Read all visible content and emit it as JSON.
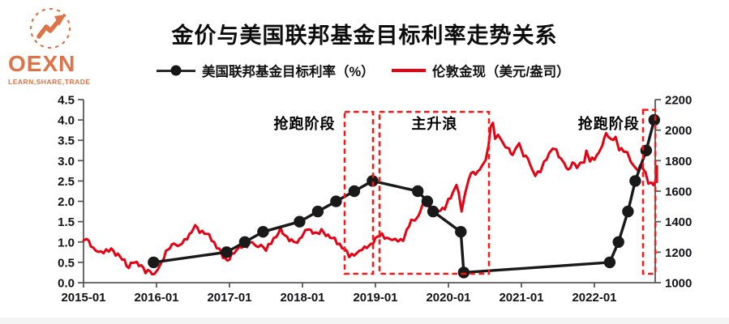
{
  "logo": {
    "name": "OEXN",
    "tagline": "LEARN,SHARE,TRADE",
    "color": "#df7246"
  },
  "title": "金价与美国联邦基金目标利率走势关系",
  "legend": [
    {
      "label": "美国联邦基金目标利率（%）",
      "marker": "black-line-dot",
      "color": "#151515"
    },
    {
      "label": "伦敦金现（美元/盎司）",
      "marker": "red-line",
      "color": "#e60012"
    }
  ],
  "chart_data": {
    "type": "line",
    "title": "金价与美国联邦基金目标利率走势关系",
    "x_tick_labels": [
      "2015-01",
      "2016-01",
      "2017-01",
      "2018-01",
      "2019-01",
      "2020-01",
      "2021-01",
      "2022-01"
    ],
    "x_tick_years": [
      2015,
      2016,
      2017,
      2018,
      2019,
      2020,
      2021,
      2022
    ],
    "grid": false,
    "legend_position": "top",
    "left_axis": {
      "min": 0,
      "max": 4.5,
      "ticks": [
        {
          "v": 4.5,
          "label": "4.5"
        },
        {
          "v": 4.0,
          "label": "4.0"
        },
        {
          "v": 3.5,
          "label": "3.5"
        },
        {
          "v": 3.0,
          "label": "3.0"
        },
        {
          "v": 2.5,
          "label": "2.5"
        },
        {
          "v": 2.0,
          "label": "2.0"
        },
        {
          "v": 1.5,
          "label": "1.5"
        },
        {
          "v": 1.0,
          "label": "1.0"
        },
        {
          "v": 0.5,
          "label": "0.5"
        },
        {
          "v": 0.0,
          "label": "0.0"
        }
      ]
    },
    "right_axis": {
      "min": 1000,
      "max": 2200,
      "ticks": [
        {
          "v": 2200,
          "label": "2200"
        },
        {
          "v": 2000,
          "label": "2000"
        },
        {
          "v": 1800,
          "label": "1800"
        },
        {
          "v": 1600,
          "label": "1600"
        },
        {
          "v": 1400,
          "label": "1400"
        },
        {
          "v": 1200,
          "label": "1200"
        },
        {
          "v": 1000,
          "label": "1000"
        }
      ]
    },
    "series": [
      {
        "name": "美国联邦基金目标利率（%）",
        "axis": "left",
        "color": "#191919",
        "style": "line-markers",
        "points": [
          [
            2015.96,
            0.5
          ],
          [
            2016.96,
            0.75
          ],
          [
            2017.21,
            1.0
          ],
          [
            2017.46,
            1.25
          ],
          [
            2017.96,
            1.5
          ],
          [
            2018.21,
            1.75
          ],
          [
            2018.46,
            2.0
          ],
          [
            2018.71,
            2.25
          ],
          [
            2018.96,
            2.5
          ],
          [
            2019.58,
            2.25
          ],
          [
            2019.71,
            2.0
          ],
          [
            2019.79,
            1.75
          ],
          [
            2020.17,
            1.25
          ],
          [
            2020.21,
            0.25
          ],
          [
            2022.21,
            0.5
          ],
          [
            2022.33,
            1.0
          ],
          [
            2022.46,
            1.75
          ],
          [
            2022.56,
            2.5
          ],
          [
            2022.71,
            3.25
          ],
          [
            2022.82,
            4.0
          ]
        ]
      },
      {
        "name": "伦敦金现（美元/盎司）",
        "axis": "right",
        "color": "#e60012",
        "style": "noisy-line",
        "points": [
          [
            2015.0,
            1270
          ],
          [
            2015.04,
            1292
          ],
          [
            2015.1,
            1250
          ],
          [
            2015.17,
            1205
          ],
          [
            2015.24,
            1185
          ],
          [
            2015.31,
            1210
          ],
          [
            2015.38,
            1220
          ],
          [
            2015.44,
            1185
          ],
          [
            2015.5,
            1170
          ],
          [
            2015.56,
            1150
          ],
          [
            2015.62,
            1095
          ],
          [
            2015.68,
            1130
          ],
          [
            2015.73,
            1135
          ],
          [
            2015.79,
            1110
          ],
          [
            2015.85,
            1070
          ],
          [
            2015.91,
            1075
          ],
          [
            2015.97,
            1050
          ],
          [
            2016.02,
            1095
          ],
          [
            2016.07,
            1130
          ],
          [
            2016.13,
            1200
          ],
          [
            2016.18,
            1245
          ],
          [
            2016.24,
            1255
          ],
          [
            2016.29,
            1230
          ],
          [
            2016.35,
            1265
          ],
          [
            2016.42,
            1295
          ],
          [
            2016.48,
            1320
          ],
          [
            2016.53,
            1365
          ],
          [
            2016.59,
            1345
          ],
          [
            2016.66,
            1330
          ],
          [
            2016.72,
            1305
          ],
          [
            2016.79,
            1260
          ],
          [
            2016.86,
            1215
          ],
          [
            2016.91,
            1170
          ],
          [
            2016.97,
            1135
          ],
          [
            2017.03,
            1190
          ],
          [
            2017.1,
            1215
          ],
          [
            2017.17,
            1240
          ],
          [
            2017.24,
            1255
          ],
          [
            2017.31,
            1268
          ],
          [
            2017.36,
            1228
          ],
          [
            2017.43,
            1258
          ],
          [
            2017.5,
            1222
          ],
          [
            2017.57,
            1262
          ],
          [
            2017.64,
            1312
          ],
          [
            2017.7,
            1348
          ],
          [
            2017.76,
            1305
          ],
          [
            2017.82,
            1282
          ],
          [
            2017.88,
            1272
          ],
          [
            2017.93,
            1252
          ],
          [
            2017.99,
            1298
          ],
          [
            2018.04,
            1342
          ],
          [
            2018.09,
            1358
          ],
          [
            2018.14,
            1325
          ],
          [
            2018.2,
            1318
          ],
          [
            2018.26,
            1345
          ],
          [
            2018.32,
            1318
          ],
          [
            2018.38,
            1298
          ],
          [
            2018.44,
            1278
          ],
          [
            2018.51,
            1248
          ],
          [
            2018.58,
            1210
          ],
          [
            2018.64,
            1178
          ],
          [
            2018.71,
            1196
          ],
          [
            2018.78,
            1208
          ],
          [
            2018.85,
            1222
          ],
          [
            2018.91,
            1242
          ],
          [
            2018.97,
            1275
          ],
          [
            2019.03,
            1292
          ],
          [
            2019.09,
            1312
          ],
          [
            2019.16,
            1298
          ],
          [
            2019.23,
            1282
          ],
          [
            2019.31,
            1278
          ],
          [
            2019.38,
            1292
          ],
          [
            2019.43,
            1332
          ],
          [
            2019.49,
            1405
          ],
          [
            2019.54,
            1418
          ],
          [
            2019.59,
            1438
          ],
          [
            2019.64,
            1505
          ],
          [
            2019.69,
            1540
          ],
          [
            2019.73,
            1498
          ],
          [
            2019.78,
            1478
          ],
          [
            2019.84,
            1462
          ],
          [
            2019.89,
            1472
          ],
          [
            2019.95,
            1492
          ],
          [
            2020.0,
            1552
          ],
          [
            2020.06,
            1582
          ],
          [
            2020.11,
            1648
          ],
          [
            2020.14,
            1592
          ],
          [
            2020.18,
            1478
          ],
          [
            2020.23,
            1585
          ],
          [
            2020.28,
            1682
          ],
          [
            2020.34,
            1718
          ],
          [
            2020.4,
            1732
          ],
          [
            2020.46,
            1768
          ],
          [
            2020.51,
            1802
          ],
          [
            2020.55,
            1902
          ],
          [
            2020.58,
            2022
          ],
          [
            2020.61,
            2062
          ],
          [
            2020.64,
            1938
          ],
          [
            2020.68,
            1968
          ],
          [
            2020.73,
            1918
          ],
          [
            2020.78,
            1898
          ],
          [
            2020.83,
            1878
          ],
          [
            2020.88,
            1842
          ],
          [
            2020.92,
            1878
          ],
          [
            2020.97,
            1898
          ],
          [
            2021.03,
            1848
          ],
          [
            2021.09,
            1818
          ],
          [
            2021.14,
            1738
          ],
          [
            2021.19,
            1702
          ],
          [
            2021.26,
            1738
          ],
          [
            2021.31,
            1782
          ],
          [
            2021.38,
            1832
          ],
          [
            2021.43,
            1898
          ],
          [
            2021.48,
            1868
          ],
          [
            2021.54,
            1812
          ],
          [
            2021.59,
            1782
          ],
          [
            2021.64,
            1732
          ],
          [
            2021.7,
            1792
          ],
          [
            2021.76,
            1762
          ],
          [
            2021.81,
            1772
          ],
          [
            2021.86,
            1792
          ],
          [
            2021.89,
            1858
          ],
          [
            2021.94,
            1802
          ],
          [
            2022.0,
            1802
          ],
          [
            2022.06,
            1852
          ],
          [
            2022.11,
            1902
          ],
          [
            2022.16,
            1988
          ],
          [
            2022.19,
            1948
          ],
          [
            2022.23,
            1932
          ],
          [
            2022.29,
            1948
          ],
          [
            2022.34,
            1882
          ],
          [
            2022.4,
            1852
          ],
          [
            2022.45,
            1842
          ],
          [
            2022.5,
            1812
          ],
          [
            2022.55,
            1752
          ],
          [
            2022.6,
            1732
          ],
          [
            2022.65,
            1758
          ],
          [
            2022.7,
            1712
          ],
          [
            2022.74,
            1662
          ],
          [
            2022.78,
            1648
          ],
          [
            2022.81,
            1632
          ],
          [
            2022.84,
            1668
          ],
          [
            2022.86,
            1648
          ],
          [
            2022.875,
            1752
          ]
        ]
      }
    ],
    "annotation_boxes": [
      {
        "x1": 2018.578,
        "x2": 2018.967,
        "top": 4.2,
        "bottom": 0.22,
        "color": "#fa1616"
      },
      {
        "x1": 2019.056,
        "x2": 2020.556,
        "top": 4.2,
        "bottom": 0.22,
        "color": "#fa1616"
      },
      {
        "x1": 2022.667,
        "x2": 2022.835,
        "top": 4.25,
        "bottom": 0.22,
        "color": "#fa1616"
      }
    ],
    "annotation_labels": [
      {
        "text": "抢跑阶段",
        "t": 2018.45,
        "value": 3.9,
        "anchor": "end"
      },
      {
        "text": "主升浪",
        "t": 2019.81,
        "value": 3.9,
        "anchor": "middle"
      },
      {
        "text": "抢跑阶段",
        "t": 2022.62,
        "value": 3.9,
        "anchor": "end"
      }
    ],
    "colors": {
      "fed_line": "#191919",
      "gold_line": "#e60012",
      "box_red": "#fa1616",
      "axis": "#595959",
      "tick_text": "#121218"
    }
  }
}
